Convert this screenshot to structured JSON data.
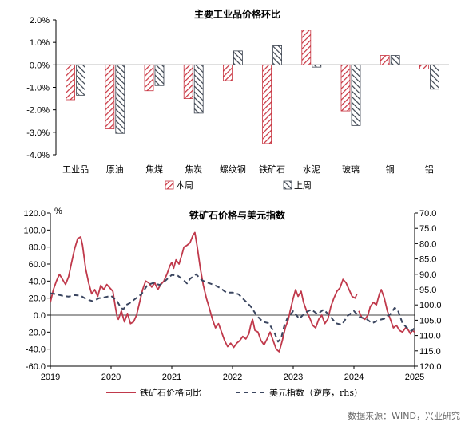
{
  "source": "数据来源：WIND，兴业研究",
  "chart_data": [
    {
      "type": "bar",
      "title": "主要工业品价格环比",
      "categories": [
        "工业品",
        "原油",
        "焦煤",
        "焦炭",
        "螺纹钢",
        "铁矿石",
        "水泥",
        "玻璃",
        "铜",
        "铝"
      ],
      "series": [
        {
          "name": "本周",
          "color": "#c8333f",
          "pattern": "diagonal-red",
          "values": [
            -1.55,
            -2.85,
            -1.15,
            -1.5,
            -0.7,
            -3.5,
            1.55,
            -2.05,
            0.42,
            -0.18
          ]
        },
        {
          "name": "上周",
          "color": "#3c4450",
          "pattern": "diagonal-dark",
          "values": [
            -1.35,
            -3.05,
            -0.92,
            -2.15,
            0.62,
            0.85,
            -0.1,
            -2.7,
            0.42,
            -1.08
          ]
        }
      ],
      "ylim": [
        -4.0,
        2.0
      ],
      "yticks": [
        "2.0%",
        "1.0%",
        "0.0%",
        "-1.0%",
        "-2.0%",
        "-3.0%",
        "-4.0%"
      ],
      "ytick_values": [
        2,
        1,
        0,
        -1,
        -2,
        -3,
        -4
      ],
      "legend": "bottom"
    },
    {
      "type": "line",
      "title": "铁矿石价格与美元指数",
      "unit_label": "%",
      "xlim": [
        2019.0,
        2025.0
      ],
      "xticks": [
        "2019",
        "2020",
        "2021",
        "2022",
        "2023",
        "2024",
        "2025"
      ],
      "xtick_values": [
        2019,
        2020,
        2021,
        2022,
        2023,
        2024,
        2025
      ],
      "ylim_left": [
        -60,
        120
      ],
      "yticks_left": [
        "120.0",
        "100.0",
        "80.0",
        "60.0",
        "40.0",
        "20.0",
        "0.0",
        "-20.0",
        "-40.0",
        "-60.0"
      ],
      "ytick_values_left": [
        120,
        100,
        80,
        60,
        40,
        20,
        0,
        -20,
        -40,
        -60
      ],
      "ylim_right": [
        70,
        120
      ],
      "right_axis_inverted": true,
      "yticks_right": [
        "70.0",
        "75.0",
        "80.0",
        "85.0",
        "90.0",
        "95.0",
        "100.0",
        "105.0",
        "110.0",
        "115.0",
        "120.0"
      ],
      "ytick_values_right": [
        70,
        75,
        80,
        85,
        90,
        95,
        100,
        105,
        110,
        115,
        120
      ],
      "legend": "bottom",
      "series": [
        {
          "name": "铁矿石价格同比",
          "axis": "left",
          "color": "#c0394b",
          "style": "solid",
          "points": [
            [
              2019.0,
              15
            ],
            [
              2019.05,
              30
            ],
            [
              2019.1,
              40
            ],
            [
              2019.15,
              48
            ],
            [
              2019.2,
              42
            ],
            [
              2019.25,
              36
            ],
            [
              2019.3,
              45
            ],
            [
              2019.35,
              62
            ],
            [
              2019.4,
              78
            ],
            [
              2019.45,
              90
            ],
            [
              2019.5,
              92
            ],
            [
              2019.53,
              82
            ],
            [
              2019.58,
              55
            ],
            [
              2019.63,
              38
            ],
            [
              2019.68,
              25
            ],
            [
              2019.73,
              30
            ],
            [
              2019.78,
              22
            ],
            [
              2019.83,
              35
            ],
            [
              2019.88,
              30
            ],
            [
              2019.93,
              36
            ],
            [
              2019.98,
              32
            ],
            [
              2020.03,
              28
            ],
            [
              2020.07,
              10
            ],
            [
              2020.1,
              -2
            ],
            [
              2020.12,
              -5
            ],
            [
              2020.17,
              5
            ],
            [
              2020.22,
              -8
            ],
            [
              2020.27,
              2
            ],
            [
              2020.32,
              -10
            ],
            [
              2020.37,
              -8
            ],
            [
              2020.42,
              0
            ],
            [
              2020.47,
              15
            ],
            [
              2020.52,
              30
            ],
            [
              2020.57,
              40
            ],
            [
              2020.62,
              38
            ],
            [
              2020.67,
              33
            ],
            [
              2020.72,
              38
            ],
            [
              2020.77,
              30
            ],
            [
              2020.82,
              36
            ],
            [
              2020.87,
              40
            ],
            [
              2020.92,
              48
            ],
            [
              2020.97,
              58
            ],
            [
              2021.0,
              62
            ],
            [
              2021.03,
              55
            ],
            [
              2021.07,
              65
            ],
            [
              2021.12,
              60
            ],
            [
              2021.17,
              72
            ],
            [
              2021.2,
              80
            ],
            [
              2021.25,
              82
            ],
            [
              2021.3,
              85
            ],
            [
              2021.35,
              94
            ],
            [
              2021.38,
              97
            ],
            [
              2021.42,
              80
            ],
            [
              2021.47,
              55
            ],
            [
              2021.52,
              35
            ],
            [
              2021.57,
              20
            ],
            [
              2021.62,
              8
            ],
            [
              2021.67,
              -5
            ],
            [
              2021.72,
              -15
            ],
            [
              2021.77,
              -10
            ],
            [
              2021.82,
              -20
            ],
            [
              2021.87,
              -30
            ],
            [
              2021.92,
              -37
            ],
            [
              2021.97,
              -33
            ],
            [
              2022.02,
              -38
            ],
            [
              2022.07,
              -33
            ],
            [
              2022.12,
              -30
            ],
            [
              2022.17,
              -25
            ],
            [
              2022.22,
              -28
            ],
            [
              2022.27,
              -22
            ],
            [
              2022.3,
              -12
            ],
            [
              2022.33,
              -5
            ],
            [
              2022.37,
              -18
            ],
            [
              2022.42,
              -20
            ],
            [
              2022.47,
              -30
            ],
            [
              2022.52,
              -35
            ],
            [
              2022.57,
              -28
            ],
            [
              2022.62,
              -20
            ],
            [
              2022.67,
              -30
            ],
            [
              2022.72,
              -40
            ],
            [
              2022.77,
              -43
            ],
            [
              2022.82,
              -30
            ],
            [
              2022.87,
              -15
            ],
            [
              2022.92,
              -5
            ],
            [
              2022.95,
              5
            ],
            [
              2023.0,
              20
            ],
            [
              2023.04,
              30
            ],
            [
              2023.08,
              22
            ],
            [
              2023.13,
              28
            ],
            [
              2023.17,
              15
            ],
            [
              2023.22,
              5
            ],
            [
              2023.27,
              -3
            ],
            [
              2023.32,
              -12
            ],
            [
              2023.37,
              -15
            ],
            [
              2023.42,
              -5
            ],
            [
              2023.47,
              0
            ],
            [
              2023.52,
              -10
            ],
            [
              2023.57,
              -5
            ],
            [
              2023.62,
              10
            ],
            [
              2023.67,
              20
            ],
            [
              2023.72,
              28
            ],
            [
              2023.77,
              32
            ],
            [
              2023.82,
              42
            ],
            [
              2023.87,
              38
            ],
            [
              2023.92,
              30
            ],
            [
              2023.97,
              22
            ],
            [
              2024.02,
              20
            ],
            [
              2024.05,
              25
            ]
          ]
        },
        {
          "name": "铁矿石价格同比",
          "axis": "left",
          "color": "#c0394b",
          "style": "solid",
          "points": [
            [
              2024.08,
              5
            ],
            [
              2024.13,
              -3
            ],
            [
              2024.18,
              -5
            ],
            [
              2024.23,
              0
            ],
            [
              2024.27,
              10
            ],
            [
              2024.32,
              15
            ],
            [
              2024.37,
              12
            ],
            [
              2024.42,
              25
            ],
            [
              2024.45,
              30
            ],
            [
              2024.5,
              20
            ],
            [
              2024.55,
              5
            ],
            [
              2024.6,
              -5
            ],
            [
              2024.65,
              -15
            ],
            [
              2024.7,
              -12
            ],
            [
              2024.75,
              -18
            ],
            [
              2024.8,
              -20
            ],
            [
              2024.85,
              -15
            ],
            [
              2024.9,
              -18
            ],
            [
              2024.93,
              -22
            ],
            [
              2024.96,
              -18
            ],
            [
              2025.0,
              -20
            ]
          ]
        },
        {
          "name": "美元指数（逆序，rhs）",
          "axis": "right",
          "color": "#3b4660",
          "style": "dashed",
          "points": [
            [
              2019.0,
              96.2
            ],
            [
              2019.1,
              96.5
            ],
            [
              2019.2,
              97.0
            ],
            [
              2019.3,
              97.3
            ],
            [
              2019.4,
              96.8
            ],
            [
              2019.5,
              97.0
            ],
            [
              2019.6,
              98.2
            ],
            [
              2019.7,
              98.8
            ],
            [
              2019.8,
              97.8
            ],
            [
              2019.9,
              97.5
            ],
            [
              2020.0,
              97.0
            ],
            [
              2020.1,
              98.8
            ],
            [
              2020.15,
              100.5
            ],
            [
              2020.2,
              101.5
            ],
            [
              2020.25,
              100.0
            ],
            [
              2020.3,
              99.5
            ],
            [
              2020.4,
              98.0
            ],
            [
              2020.5,
              96.5
            ],
            [
              2020.6,
              93.5
            ],
            [
              2020.7,
              92.8
            ],
            [
              2020.8,
              93.5
            ],
            [
              2020.9,
              92.0
            ],
            [
              2021.0,
              90.2
            ],
            [
              2021.1,
              90.5
            ],
            [
              2021.2,
              92.0
            ],
            [
              2021.25,
              93.0
            ],
            [
              2021.3,
              91.5
            ],
            [
              2021.4,
              90.0
            ],
            [
              2021.5,
              92.0
            ],
            [
              2021.6,
              92.8
            ],
            [
              2021.7,
              93.5
            ],
            [
              2021.8,
              94.5
            ],
            [
              2021.9,
              96.0
            ],
            [
              2022.0,
              96.0
            ],
            [
              2022.1,
              96.5
            ],
            [
              2022.2,
              98.5
            ],
            [
              2022.3,
              100.5
            ],
            [
              2022.4,
              103.5
            ],
            [
              2022.5,
              105.5
            ],
            [
              2022.6,
              106.0
            ],
            [
              2022.7,
              109.5
            ],
            [
              2022.75,
              112.0
            ],
            [
              2022.8,
              111.0
            ],
            [
              2022.85,
              107.0
            ],
            [
              2022.9,
              104.5
            ],
            [
              2023.0,
              102.0
            ],
            [
              2023.1,
              104.5
            ],
            [
              2023.2,
              102.5
            ],
            [
              2023.3,
              101.5
            ],
            [
              2023.4,
              103.0
            ],
            [
              2023.5,
              101.5
            ],
            [
              2023.6,
              103.5
            ],
            [
              2023.7,
              106.0
            ],
            [
              2023.8,
              106.5
            ],
            [
              2023.9,
              103.5
            ],
            [
              2024.0,
              102.0
            ],
            [
              2024.1,
              104.0
            ],
            [
              2024.2,
              104.5
            ],
            [
              2024.3,
              106.0
            ],
            [
              2024.4,
              105.0
            ],
            [
              2024.5,
              104.5
            ],
            [
              2024.6,
              103.0
            ],
            [
              2024.67,
              101.0
            ],
            [
              2024.72,
              101.5
            ],
            [
              2024.8,
              106.0
            ],
            [
              2024.85,
              107.0
            ],
            [
              2024.9,
              108.0
            ],
            [
              2024.95,
              108.5
            ],
            [
              2025.0,
              107.5
            ]
          ]
        }
      ]
    }
  ]
}
